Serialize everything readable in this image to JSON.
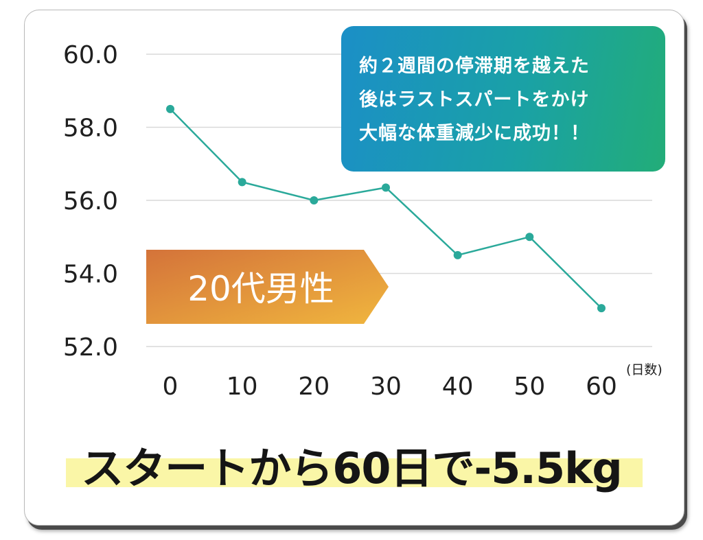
{
  "chart_data": {
    "type": "line",
    "x": [
      0,
      10,
      20,
      30,
      40,
      50,
      60
    ],
    "x_tick_labels": [
      "0",
      "10",
      "20",
      "30",
      "40",
      "50",
      "60"
    ],
    "y_tick_labels": [
      "60.0",
      "58.0",
      "56.0",
      "54.0",
      "52.0"
    ],
    "series": [
      {
        "values": [
          58.5,
          56.5,
          56.0,
          56.35,
          54.5,
          55.0,
          53.05
        ]
      }
    ],
    "xlabel": "(日数)",
    "ylabel": "",
    "ylim": [
      52.0,
      60.0
    ],
    "xlim": [
      0,
      60
    ],
    "grid": true,
    "line_color": "#2aa99a",
    "grid_color": "#d9d9d9"
  },
  "badge": {
    "label": "20代男性",
    "color_start": "#d4733a",
    "color_end": "#f0b63e"
  },
  "callout": {
    "lines": [
      "約２週間の停滞期を越えた",
      "後はラストスパートをかけ",
      "大幅な体重減少に成功！！"
    ]
  },
  "footer": {
    "headline": "スタートから60日で-5.5kg",
    "highlight_color": "#faf6a7"
  }
}
